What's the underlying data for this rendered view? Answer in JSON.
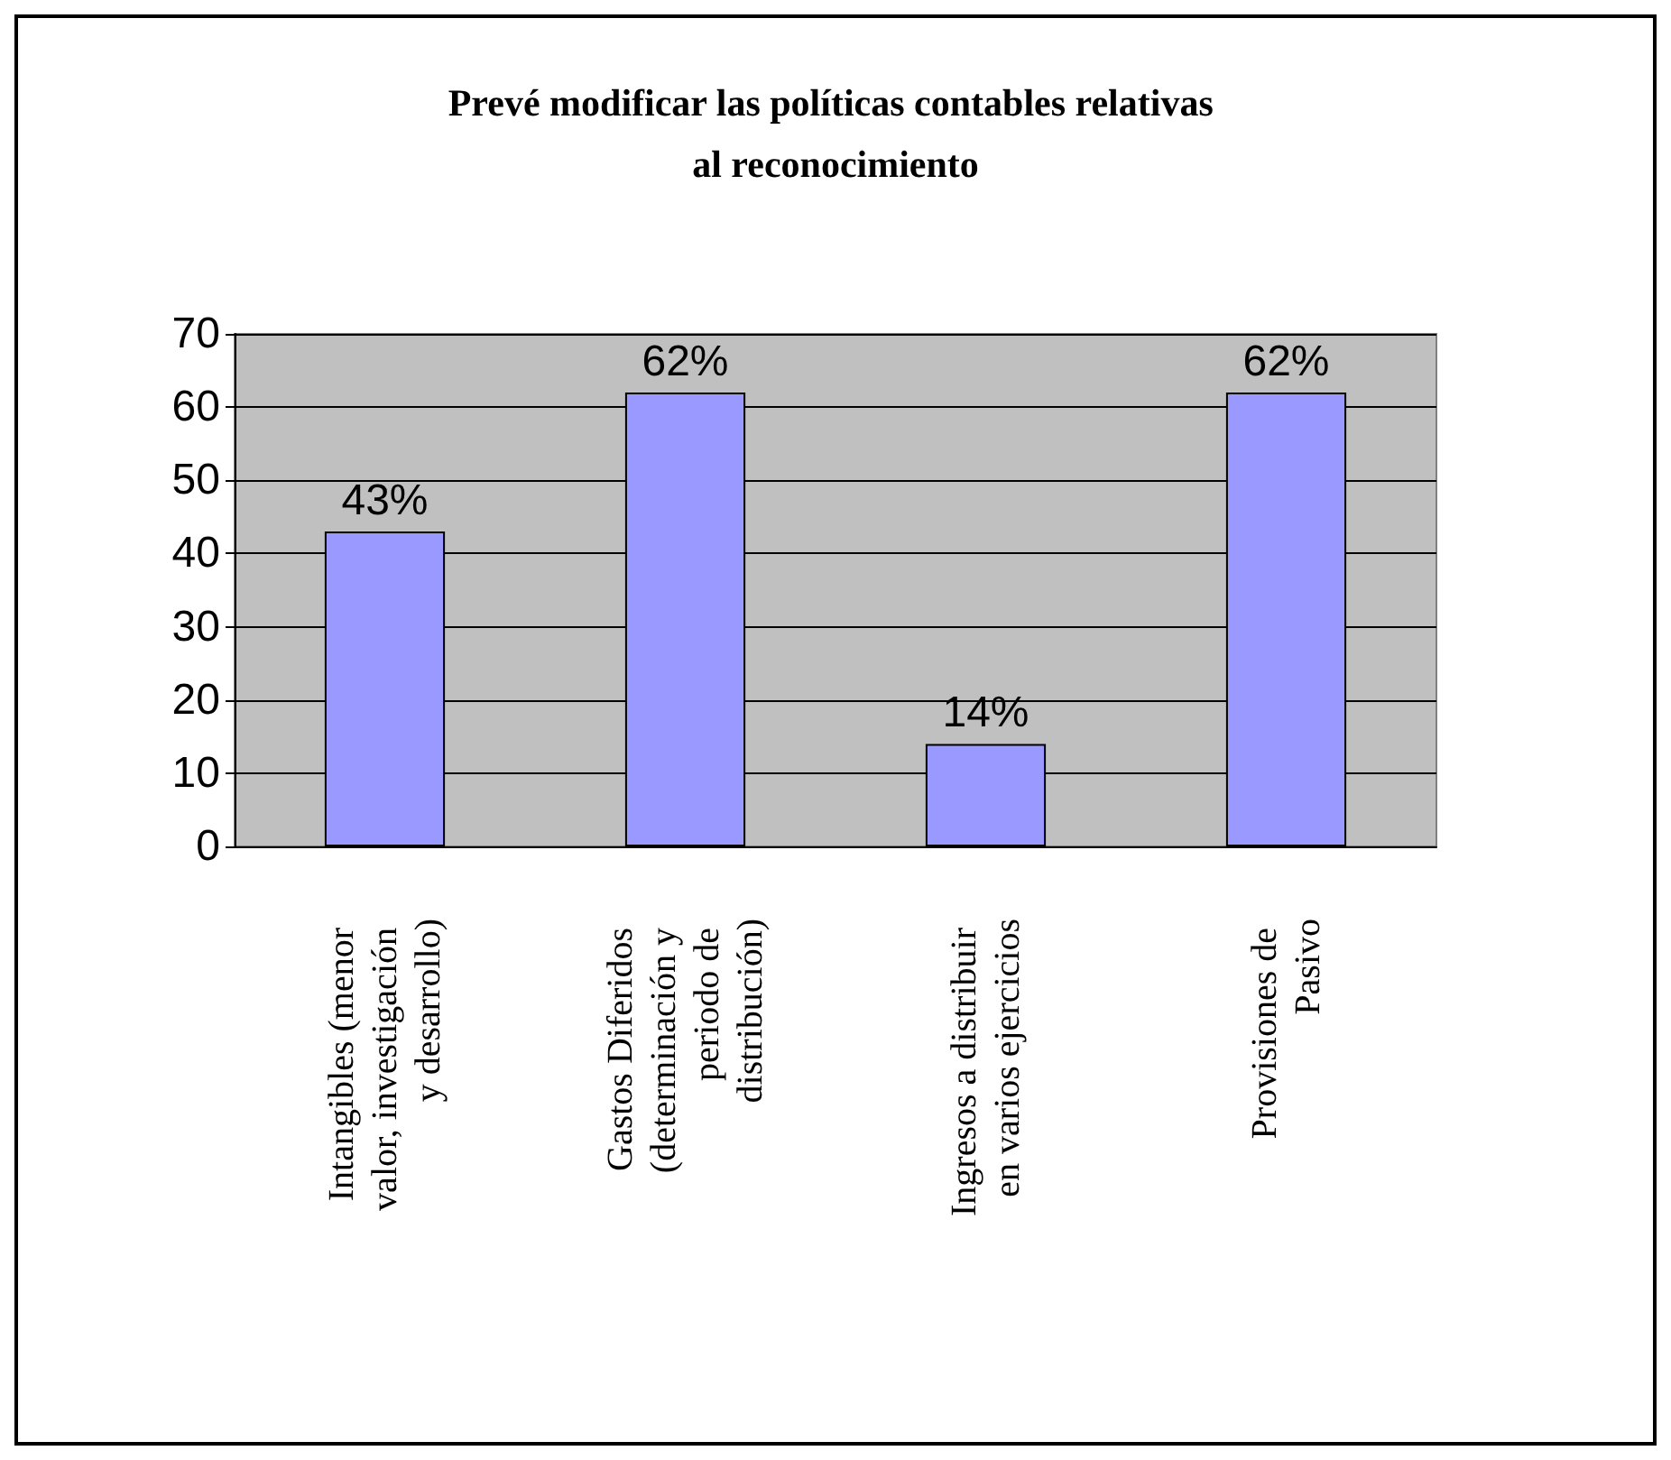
{
  "chart_data": {
    "type": "bar",
    "title": "Prevé modificar las políticas contables relativas al reconocimiento",
    "categories": [
      "Intangibles (menor valor, investigación y desarrollo)",
      "Gastos Diferidos (determinación y periodo de distribución)",
      "Ingresos a distribuir en varios ejercicios",
      "Provisiones de Pasivo"
    ],
    "values": [
      43,
      62,
      14,
      62
    ],
    "value_labels": [
      "43%",
      "62%",
      "14%",
      "62%"
    ],
    "color": "#9999ff",
    "ylim": [
      0,
      70
    ],
    "yticks": [
      0,
      10,
      20,
      30,
      40,
      50,
      60,
      70
    ],
    "grid": "y"
  }
}
